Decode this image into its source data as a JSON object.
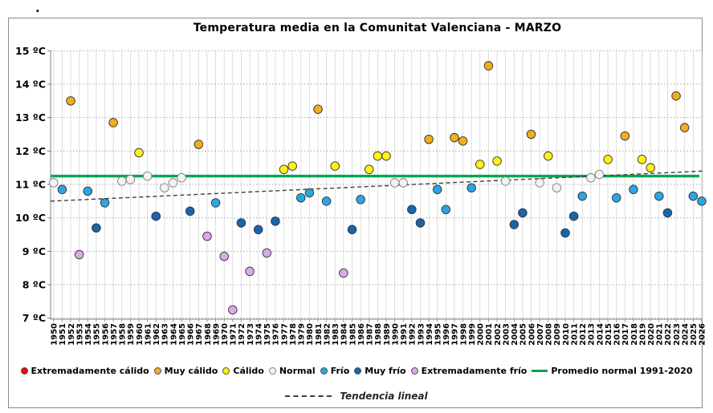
{
  "page": {
    "stray_text": "."
  },
  "chart_data": {
    "type": "scatter",
    "title": "Temperatura media en la Comunitat Valenciana - MARZO",
    "xlabel": "",
    "ylabel": "",
    "ylim": [
      7,
      15
    ],
    "xlim": [
      1950,
      2026
    ],
    "grid": true,
    "legend_position": "bottom",
    "y_tick_values": [
      15,
      14,
      13,
      12,
      11,
      10,
      9,
      8,
      7
    ],
    "y_tick_labels": [
      "15 ºC",
      "14 ºC",
      "13 ºC",
      "12 ºC",
      "11 ºC",
      "10 ºC",
      "9 ºC",
      "8 ºC",
      "7 ºC"
    ],
    "categories": [
      {
        "key": "extremadamente-calido",
        "label": "Extremadamente cálido",
        "color": "#FE0000",
        "marker": "dot"
      },
      {
        "key": "muy-calido",
        "label": "Muy cálido",
        "color": "#F2AC20",
        "marker": "dot"
      },
      {
        "key": "calido",
        "label": "Cálido",
        "color": "#FFF115",
        "marker": "dot"
      },
      {
        "key": "normal",
        "label": "Normal",
        "color": "#F2F2F2",
        "marker": "dot"
      },
      {
        "key": "frio",
        "label": "Frío",
        "color": "#2BA6DF",
        "marker": "dot"
      },
      {
        "key": "muy-frio",
        "label": "Muy frío",
        "color": "#1666AE",
        "marker": "dot"
      },
      {
        "key": "extremadamente-frio",
        "label": "Extremadamente frío",
        "color": "#DCA9E8",
        "marker": "dot"
      },
      {
        "key": "promedio-normal",
        "label": "Promedio normal 1991-2020",
        "color": "#00A651",
        "marker": "line"
      }
    ],
    "promedio_value": 11.25,
    "trend": {
      "label": "Tendencia lineal",
      "start_value": 10.5,
      "end_value": 11.4,
      "style": "dashed",
      "color": "#3F3F3F"
    },
    "points": [
      [
        1950,
        11.05,
        "Normal"
      ],
      [
        1951,
        10.85,
        "Frío"
      ],
      [
        1952,
        13.5,
        "Muy cálido"
      ],
      [
        1953,
        8.9,
        "Extremadamente frío"
      ],
      [
        1954,
        10.8,
        "Frío"
      ],
      [
        1955,
        9.7,
        "Muy frío"
      ],
      [
        1956,
        10.45,
        "Frío"
      ],
      [
        1957,
        12.85,
        "Muy cálido"
      ],
      [
        1958,
        11.1,
        "Normal"
      ],
      [
        1959,
        11.15,
        "Normal"
      ],
      [
        1960,
        11.95,
        "Cálido"
      ],
      [
        1961,
        11.25,
        "Normal"
      ],
      [
        1962,
        10.05,
        "Muy frío"
      ],
      [
        1963,
        10.9,
        "Normal"
      ],
      [
        1964,
        11.05,
        "Normal"
      ],
      [
        1965,
        11.2,
        "Normal"
      ],
      [
        1966,
        10.2,
        "Muy frío"
      ],
      [
        1967,
        12.2,
        "Muy cálido"
      ],
      [
        1968,
        9.45,
        "Extremadamente frío"
      ],
      [
        1969,
        10.45,
        "Frío"
      ],
      [
        1970,
        8.85,
        "Extremadamente frío"
      ],
      [
        1971,
        7.25,
        "Extremadamente frío"
      ],
      [
        1972,
        9.85,
        "Muy frío"
      ],
      [
        1973,
        8.4,
        "Extremadamente frío"
      ],
      [
        1974,
        9.65,
        "Muy frío"
      ],
      [
        1975,
        8.95,
        "Extremadamente frío"
      ],
      [
        1976,
        9.9,
        "Muy frío"
      ],
      [
        1977,
        11.45,
        "Cálido"
      ],
      [
        1978,
        11.55,
        "Cálido"
      ],
      [
        1979,
        10.6,
        "Frío"
      ],
      [
        1980,
        10.75,
        "Frío"
      ],
      [
        1981,
        13.25,
        "Muy cálido"
      ],
      [
        1982,
        10.5,
        "Frío"
      ],
      [
        1983,
        11.55,
        "Cálido"
      ],
      [
        1984,
        8.35,
        "Extremadamente frío"
      ],
      [
        1985,
        9.65,
        "Muy frío"
      ],
      [
        1986,
        10.55,
        "Frío"
      ],
      [
        1987,
        11.45,
        "Cálido"
      ],
      [
        1988,
        11.85,
        "Cálido"
      ],
      [
        1989,
        11.85,
        "Cálido"
      ],
      [
        1990,
        11.05,
        "Normal"
      ],
      [
        1991,
        11.05,
        "Normal"
      ],
      [
        1992,
        10.25,
        "Muy frío"
      ],
      [
        1993,
        9.85,
        "Muy frío"
      ],
      [
        1994,
        12.35,
        "Muy cálido"
      ],
      [
        1995,
        10.85,
        "Frío"
      ],
      [
        1996,
        10.25,
        "Frío"
      ],
      [
        1997,
        12.4,
        "Muy cálido"
      ],
      [
        1998,
        12.3,
        "Muy cálido"
      ],
      [
        1999,
        10.9,
        "Frío"
      ],
      [
        2000,
        11.6,
        "Cálido"
      ],
      [
        2001,
        14.55,
        "Muy cálido"
      ],
      [
        2002,
        11.7,
        "Cálido"
      ],
      [
        2003,
        11.1,
        "Normal"
      ],
      [
        2004,
        9.8,
        "Muy frío"
      ],
      [
        2005,
        10.15,
        "Muy frío"
      ],
      [
        2006,
        12.5,
        "Muy cálido"
      ],
      [
        2007,
        11.05,
        "Normal"
      ],
      [
        2008,
        11.85,
        "Cálido"
      ],
      [
        2009,
        10.9,
        "Normal"
      ],
      [
        2010,
        9.55,
        "Muy frío"
      ],
      [
        2011,
        10.05,
        "Muy frío"
      ],
      [
        2012,
        10.65,
        "Frío"
      ],
      [
        2013,
        11.2,
        "Normal"
      ],
      [
        2014,
        11.3,
        "Normal"
      ],
      [
        2015,
        11.75,
        "Cálido"
      ],
      [
        2016,
        10.6,
        "Frío"
      ],
      [
        2017,
        12.45,
        "Muy cálido"
      ],
      [
        2018,
        10.85,
        "Frío"
      ],
      [
        2019,
        11.75,
        "Cálido"
      ],
      [
        2020,
        11.5,
        "Cálido"
      ],
      [
        2021,
        10.65,
        "Frío"
      ],
      [
        2022,
        10.15,
        "Muy frío"
      ],
      [
        2023,
        13.65,
        "Muy cálido"
      ],
      [
        2024,
        12.7,
        "Muy cálido"
      ],
      [
        2025,
        10.65,
        "Frío"
      ],
      [
        2026,
        10.5,
        "Frío"
      ]
    ]
  }
}
